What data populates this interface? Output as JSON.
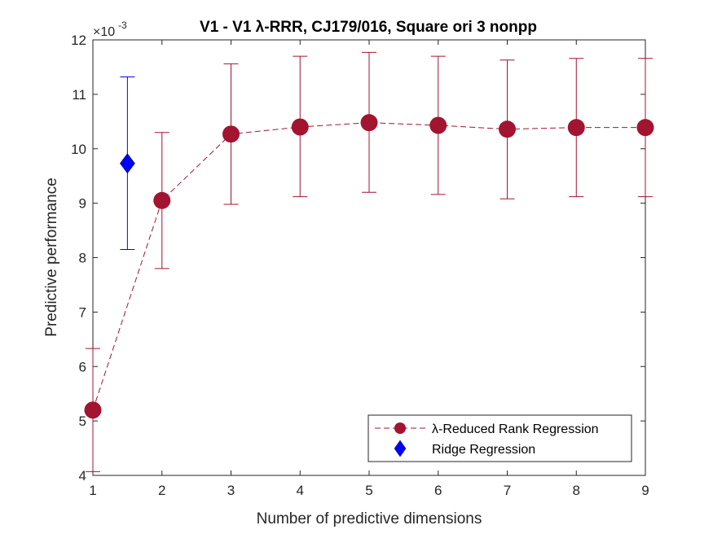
{
  "chart_data": {
    "type": "scatter",
    "title": "V1 - V1 λ-RRR, CJ179/016, Square ori 3 nonpp",
    "xlabel": "Number of predictive dimensions",
    "ylabel": "Predictive performance",
    "y_exponent_label": "×10",
    "y_exponent_power": "-3",
    "xlim": [
      1,
      9
    ],
    "ylim": [
      4,
      12
    ],
    "xticks": [
      "1",
      "2",
      "3",
      "4",
      "5",
      "6",
      "7",
      "8",
      "9"
    ],
    "yticks": [
      "4",
      "5",
      "6",
      "7",
      "8",
      "9",
      "10",
      "11",
      "12"
    ],
    "grid": false,
    "legend_position": "bottom-right",
    "series": [
      {
        "name": "λ-Reduced Rank Regression",
        "color": "#a2142f",
        "marker": "circle",
        "line": "dashed",
        "x": [
          1,
          2,
          3,
          4,
          5,
          6,
          7,
          8,
          9
        ],
        "y": [
          5.2,
          9.05,
          10.27,
          10.4,
          10.48,
          10.43,
          10.36,
          10.39,
          10.39
        ],
        "err_low": [
          4.07,
          7.8,
          8.98,
          9.12,
          9.2,
          9.16,
          9.08,
          9.12,
          9.12
        ],
        "err_high": [
          6.33,
          10.3,
          11.56,
          11.7,
          11.77,
          11.7,
          11.63,
          11.66,
          11.66
        ]
      },
      {
        "name": "Ridge Regression",
        "color": "#0000ff",
        "marker": "diamond",
        "line": "none",
        "x": [
          1.5
        ],
        "y": [
          9.73
        ],
        "err_low": [
          8.15
        ],
        "err_high": [
          11.32
        ]
      }
    ]
  }
}
